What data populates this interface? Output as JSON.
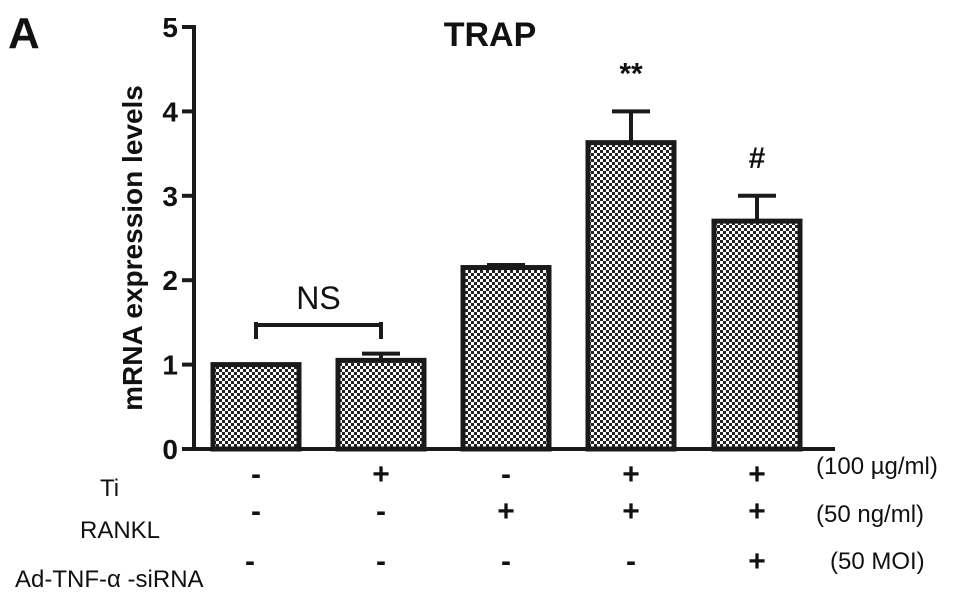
{
  "panel_label": "A",
  "chart_data": {
    "type": "bar",
    "title": "TRAP",
    "xlabel": "",
    "ylabel": "mRNA expression levels",
    "ylim": [
      0,
      5
    ],
    "yticks": [
      0,
      1,
      2,
      3,
      4,
      5
    ],
    "grid": false,
    "bar_fill": "checkered",
    "colors": {
      "bar_outline": "#1a1a1a",
      "bar_pattern_dark": "#222222",
      "bar_pattern_light": "#ffffff",
      "axis": "#1a1a1a",
      "text": "#111111"
    },
    "values": [
      1.0,
      1.05,
      2.15,
      3.63,
      2.7
    ],
    "errors": [
      0.0,
      0.08,
      0.03,
      0.37,
      0.3
    ],
    "annotations": [
      "",
      "",
      "",
      "**",
      "#"
    ],
    "comparison": {
      "text": "NS",
      "from_bar": 0,
      "to_bar": 1
    },
    "treatment_table": {
      "rows": [
        {
          "name": "Ti",
          "signs": [
            "-",
            "+",
            "-",
            "+",
            "+"
          ],
          "unit": "(100 µg/ml)"
        },
        {
          "name": "RANKL",
          "signs": [
            "-",
            "-",
            "+",
            "+",
            "+"
          ],
          "unit": "(50 ng/ml)"
        },
        {
          "name": "Ad-TNF-α -siRNA",
          "signs": [
            "-",
            "-",
            "-",
            "-",
            "+"
          ],
          "unit": "(50 MOI)"
        }
      ]
    }
  }
}
